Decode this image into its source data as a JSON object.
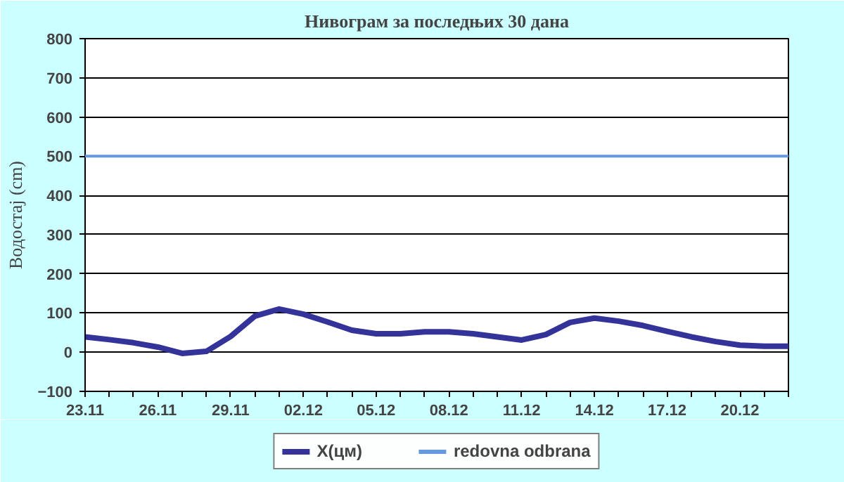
{
  "chart_data": {
    "type": "line",
    "title": "Нивограм за последњих 30 дана",
    "ylabel": "Водостај (cm)",
    "categories": [
      "23.11",
      null,
      null,
      "26.11",
      null,
      null,
      "29.11",
      null,
      null,
      "02.12",
      null,
      null,
      "05.12",
      null,
      null,
      "08.12",
      null,
      null,
      "11.12",
      null,
      null,
      "14.12",
      null,
      null,
      "17.12",
      null,
      null,
      "20.12",
      null,
      null
    ],
    "series": [
      {
        "name": "X(цм)",
        "color": "#333399",
        "values": [
          39,
          32,
          24,
          13,
          -3,
          2,
          40,
          92,
          110,
          97,
          77,
          56,
          47,
          47,
          52,
          52,
          47,
          39,
          31,
          45,
          76,
          87,
          79,
          68,
          53,
          39,
          27,
          18,
          15,
          15
        ]
      }
    ],
    "ref_lines": [
      {
        "axis": "y",
        "value": 500,
        "label": "redovna odbrana",
        "color": "#6699dd"
      }
    ],
    "ylim": [
      -100,
      800
    ],
    "yticks": [
      -100,
      0,
      100,
      200,
      300,
      400,
      500,
      600,
      700,
      800
    ],
    "grid": "y",
    "legend": "bottom",
    "line_style": "solid",
    "marker": "none"
  }
}
